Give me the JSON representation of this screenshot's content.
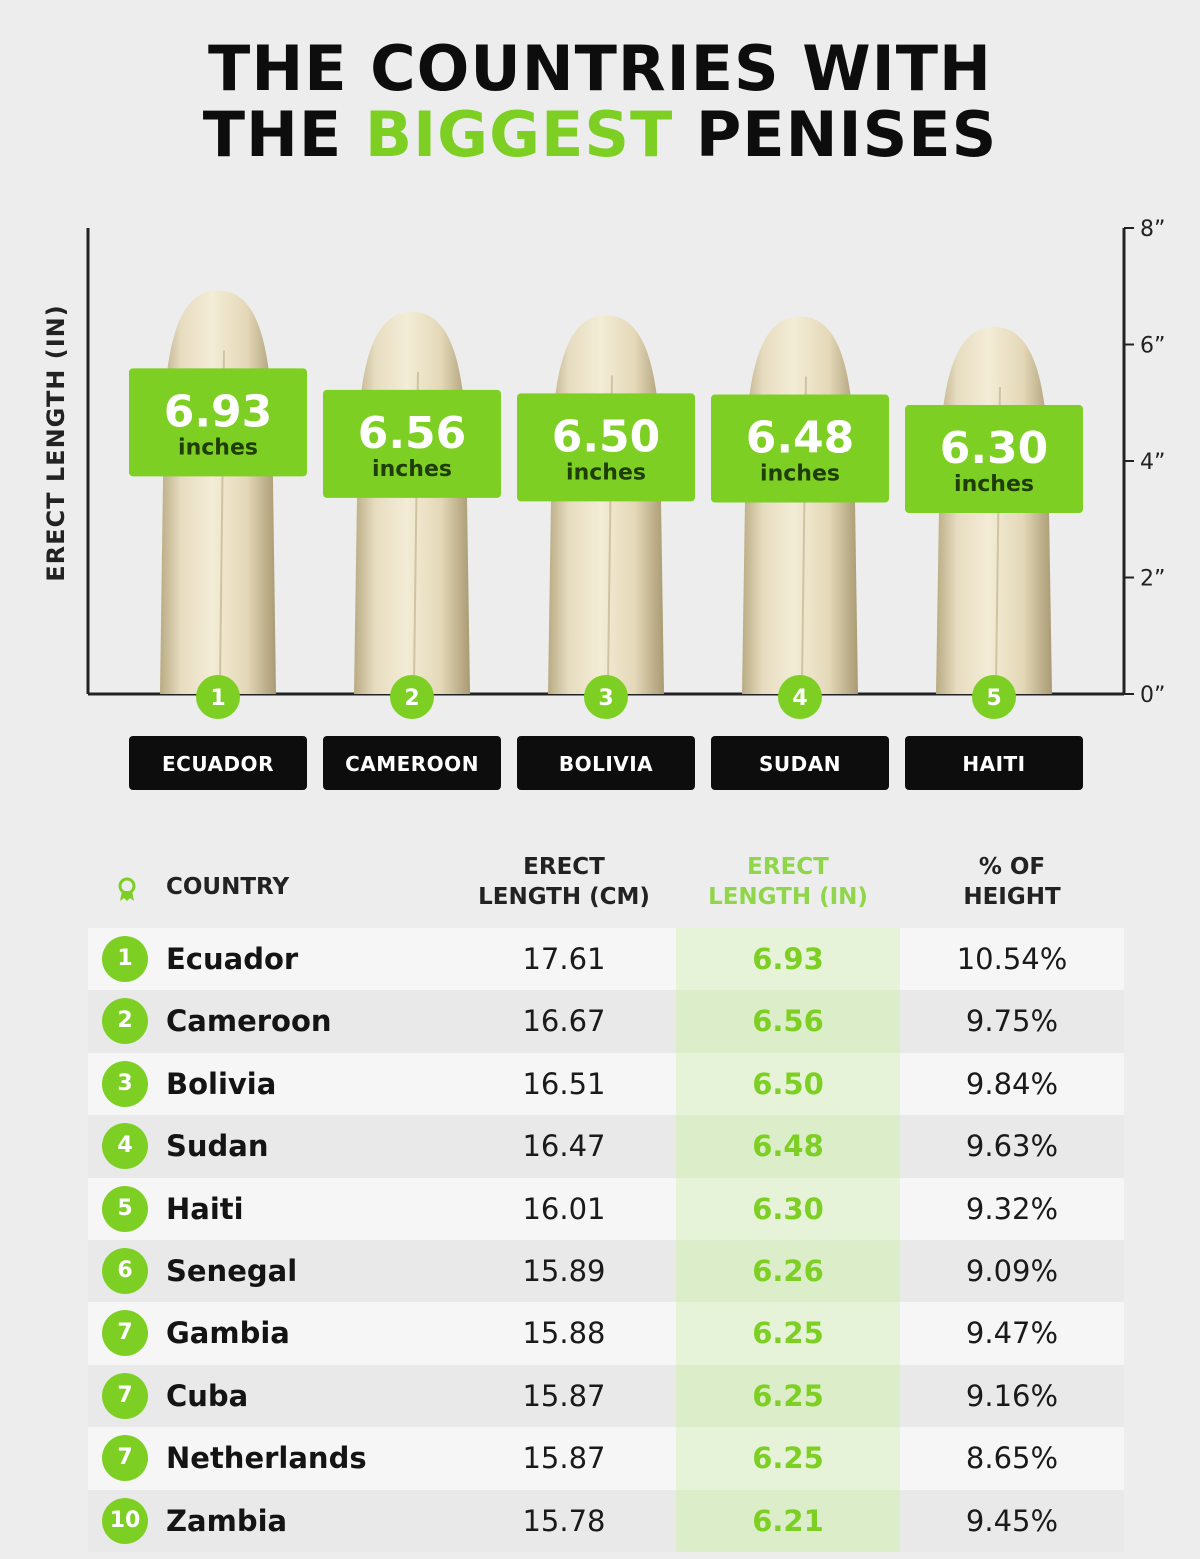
{
  "title": {
    "line1": "THE COUNTRIES WITH",
    "line2_pre": "THE ",
    "line2_highlight": "BIGGEST",
    "line2_post": " PENISES"
  },
  "colors": {
    "accent": "#7dcf24",
    "dark": "#0d0d0d",
    "background": "#ededed"
  },
  "chart_data": {
    "type": "bar",
    "ylabel": "ERECT LENGTH (IN)",
    "ylim": [
      0,
      8
    ],
    "yticks": [
      {
        "value": 0,
        "label": "0”"
      },
      {
        "value": 2,
        "label": "2”"
      },
      {
        "value": 4,
        "label": "4”"
      },
      {
        "value": 6,
        "label": "6”"
      },
      {
        "value": 8,
        "label": "8”"
      }
    ],
    "axis_position": "right",
    "value_unit": "inches",
    "bars": [
      {
        "rank": "1",
        "country": "ECUADOR",
        "value": 6.93,
        "label": "6.93"
      },
      {
        "rank": "2",
        "country": "CAMEROON",
        "value": 6.56,
        "label": "6.56"
      },
      {
        "rank": "3",
        "country": "BOLIVIA",
        "value": 6.5,
        "label": "6.50"
      },
      {
        "rank": "4",
        "country": "SUDAN",
        "value": 6.48,
        "label": "6.48"
      },
      {
        "rank": "5",
        "country": "HAITI",
        "value": 6.3,
        "label": "6.30"
      }
    ]
  },
  "table": {
    "headers": {
      "country": "COUNTRY",
      "cm_line1": "ERECT",
      "cm_line2": "LENGTH (CM)",
      "in_line1": "ERECT",
      "in_line2": "LENGTH (IN)",
      "pct_line1": "% OF",
      "pct_line2": "HEIGHT"
    },
    "rows": [
      {
        "rank": "1",
        "country": "Ecuador",
        "cm": "17.61",
        "in": "6.93",
        "pct": "10.54%"
      },
      {
        "rank": "2",
        "country": "Cameroon",
        "cm": "16.67",
        "in": "6.56",
        "pct": "9.75%"
      },
      {
        "rank": "3",
        "country": "Bolivia",
        "cm": "16.51",
        "in": "6.50",
        "pct": "9.84%"
      },
      {
        "rank": "4",
        "country": "Sudan",
        "cm": "16.47",
        "in": "6.48",
        "pct": "9.63%"
      },
      {
        "rank": "5",
        "country": "Haiti",
        "cm": "16.01",
        "in": "6.30",
        "pct": "9.32%"
      },
      {
        "rank": "6",
        "country": "Senegal",
        "cm": "15.89",
        "in": "6.26",
        "pct": "9.09%"
      },
      {
        "rank": "7",
        "country": "Gambia",
        "cm": "15.88",
        "in": "6.25",
        "pct": "9.47%"
      },
      {
        "rank": "7",
        "country": "Cuba",
        "cm": "15.87",
        "in": "6.25",
        "pct": "9.16%"
      },
      {
        "rank": "7",
        "country": "Netherlands",
        "cm": "15.87",
        "in": "6.25",
        "pct": "8.65%"
      },
      {
        "rank": "10",
        "country": "Zambia",
        "cm": "15.78",
        "in": "6.21",
        "pct": "9.45%"
      }
    ]
  }
}
